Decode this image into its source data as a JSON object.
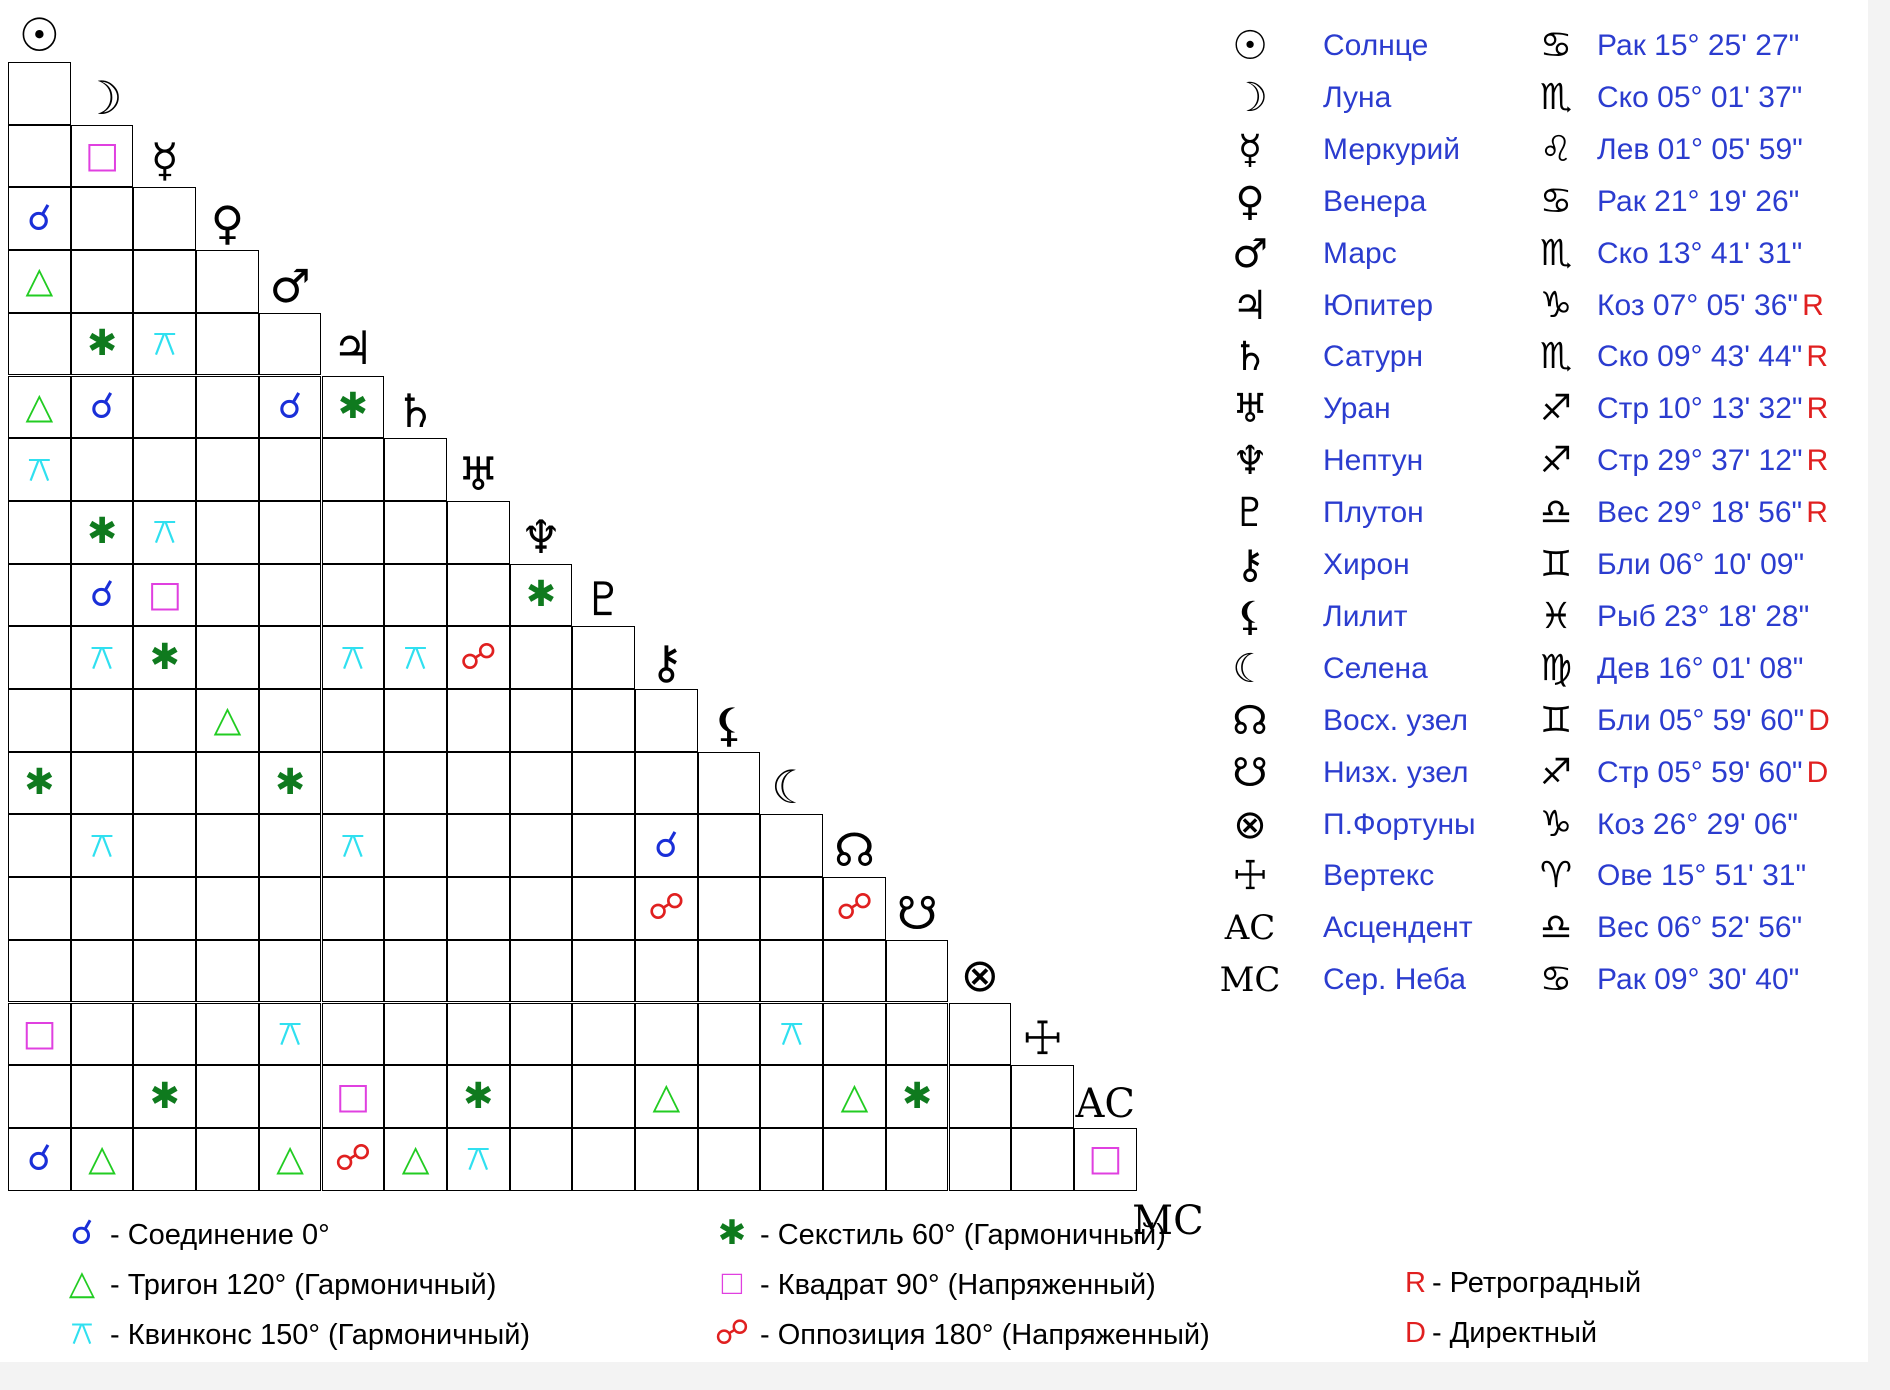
{
  "colors": {
    "conjunction": "#1a2fd8",
    "sextile": "#0f7a1e",
    "trine": "#22cc22",
    "square": "#e040e0",
    "quincunx": "#30e0f0",
    "opposition": "#e02020",
    "text_blue": "#2b3ccf",
    "flag_red": "#e02020"
  },
  "aspect_symbols": {
    "conj": "☌",
    "sext": "✱",
    "trine": "△",
    "square": "□",
    "quin": "⚻",
    "opp": "☍"
  },
  "planets": [
    {
      "glyph": "☉",
      "name": "Солнце",
      "sign": "♋",
      "pos": "Рак 15° 25' 27\"",
      "flag": ""
    },
    {
      "glyph": "☽",
      "name": "Луна",
      "sign": "♏",
      "pos": "Ско 05° 01' 37\"",
      "flag": ""
    },
    {
      "glyph": "☿",
      "name": "Меркурий",
      "sign": "♌",
      "pos": "Лев 01° 05' 59\"",
      "flag": ""
    },
    {
      "glyph": "♀",
      "name": "Венера",
      "sign": "♋",
      "pos": "Рак 21° 19' 26\"",
      "flag": ""
    },
    {
      "glyph": "♂",
      "name": "Марс",
      "sign": "♏",
      "pos": "Ско 13° 41' 31\"",
      "flag": ""
    },
    {
      "glyph": "♃",
      "name": "Юпитер",
      "sign": "♑",
      "pos": "Коз 07° 05' 36\"",
      "flag": "R"
    },
    {
      "glyph": "♄",
      "name": "Сатурн",
      "sign": "♏",
      "pos": "Ско 09° 43' 44\"",
      "flag": "R"
    },
    {
      "glyph": "♅",
      "name": "Уран",
      "sign": "♐",
      "pos": "Стр 10° 13' 32\"",
      "flag": "R"
    },
    {
      "glyph": "♆",
      "name": "Нептун",
      "sign": "♐",
      "pos": "Стр 29° 37' 12\"",
      "flag": "R"
    },
    {
      "glyph": "♇",
      "name": "Плутон",
      "sign": "♎",
      "pos": "Вес 29° 18' 56\"",
      "flag": "R"
    },
    {
      "glyph": "⚷",
      "name": "Хирон",
      "sign": "♊",
      "pos": "Бли 06° 10' 09\"",
      "flag": ""
    },
    {
      "glyph": "⚸",
      "name": "Лилит",
      "sign": "♓",
      "pos": "Рыб 23° 18' 28\"",
      "flag": ""
    },
    {
      "glyph": "☾",
      "name": "Селена",
      "sign": "♍",
      "pos": "Дев 16° 01' 08\"",
      "flag": ""
    },
    {
      "glyph": "☊",
      "name": "Восх. узел",
      "sign": "♊",
      "pos": "Бли 05° 59' 60\"",
      "flag": "D"
    },
    {
      "glyph": "☋",
      "name": "Низх. узел",
      "sign": "♐",
      "pos": "Стр 05° 59' 60\"",
      "flag": "D"
    },
    {
      "glyph": "⊗",
      "name": "П.Фортуны",
      "sign": "♑",
      "pos": "Коз 26° 29' 06\"",
      "flag": ""
    },
    {
      "glyph": "☩",
      "name": "Вертекс",
      "sign": "♈",
      "pos": "Ове 15° 51' 31\"",
      "flag": ""
    },
    {
      "glyph": "AC",
      "name": "Асцендент",
      "sign": "♎",
      "pos": "Вес 06° 52' 56\"",
      "flag": ""
    },
    {
      "glyph": "MC",
      "name": "Сер. Неба",
      "sign": "♋",
      "pos": "Рак 09° 30' 40\"",
      "flag": ""
    }
  ],
  "aspects": [
    {
      "row": 2,
      "col": 1,
      "type": "square"
    },
    {
      "row": 3,
      "col": 0,
      "type": "conj"
    },
    {
      "row": 4,
      "col": 0,
      "type": "trine"
    },
    {
      "row": 5,
      "col": 1,
      "type": "sext"
    },
    {
      "row": 5,
      "col": 2,
      "type": "quin"
    },
    {
      "row": 6,
      "col": 0,
      "type": "trine"
    },
    {
      "row": 6,
      "col": 1,
      "type": "conj"
    },
    {
      "row": 6,
      "col": 4,
      "type": "conj"
    },
    {
      "row": 6,
      "col": 5,
      "type": "sext"
    },
    {
      "row": 7,
      "col": 0,
      "type": "quin"
    },
    {
      "row": 8,
      "col": 1,
      "type": "sext"
    },
    {
      "row": 8,
      "col": 2,
      "type": "quin"
    },
    {
      "row": 9,
      "col": 1,
      "type": "conj"
    },
    {
      "row": 9,
      "col": 2,
      "type": "square"
    },
    {
      "row": 9,
      "col": 8,
      "type": "sext"
    },
    {
      "row": 10,
      "col": 1,
      "type": "quin"
    },
    {
      "row": 10,
      "col": 2,
      "type": "sext"
    },
    {
      "row": 10,
      "col": 5,
      "type": "quin"
    },
    {
      "row": 10,
      "col": 6,
      "type": "quin"
    },
    {
      "row": 10,
      "col": 7,
      "type": "opp"
    },
    {
      "row": 11,
      "col": 3,
      "type": "trine"
    },
    {
      "row": 12,
      "col": 0,
      "type": "sext"
    },
    {
      "row": 12,
      "col": 4,
      "type": "sext"
    },
    {
      "row": 13,
      "col": 1,
      "type": "quin"
    },
    {
      "row": 13,
      "col": 5,
      "type": "quin"
    },
    {
      "row": 13,
      "col": 10,
      "type": "conj"
    },
    {
      "row": 14,
      "col": 10,
      "type": "opp"
    },
    {
      "row": 14,
      "col": 13,
      "type": "opp"
    },
    {
      "row": 16,
      "col": 0,
      "type": "square"
    },
    {
      "row": 16,
      "col": 4,
      "type": "quin"
    },
    {
      "row": 16,
      "col": 12,
      "type": "quin"
    },
    {
      "row": 17,
      "col": 2,
      "type": "sext"
    },
    {
      "row": 17,
      "col": 5,
      "type": "square"
    },
    {
      "row": 17,
      "col": 7,
      "type": "sext"
    },
    {
      "row": 17,
      "col": 10,
      "type": "trine"
    },
    {
      "row": 17,
      "col": 13,
      "type": "trine"
    },
    {
      "row": 17,
      "col": 14,
      "type": "sext"
    },
    {
      "row": 18,
      "col": 0,
      "type": "conj"
    },
    {
      "row": 18,
      "col": 1,
      "type": "trine"
    },
    {
      "row": 18,
      "col": 4,
      "type": "trine"
    },
    {
      "row": 18,
      "col": 5,
      "type": "opp"
    },
    {
      "row": 18,
      "col": 6,
      "type": "trine"
    },
    {
      "row": 18,
      "col": 7,
      "type": "quin"
    },
    {
      "row": 18,
      "col": 17,
      "type": "square"
    }
  ],
  "legend": {
    "conj": "- Соединение 0°",
    "trine": "- Тригон 120° (Гармоничный)",
    "quin": "- Квинконс 150° (Гармоничный)",
    "sext": "- Секстиль 60° (Гармоничный)",
    "square": "- Квадрат 90° (Напряженный)",
    "opp": "- Оппозиция 180° (Напряженный)",
    "R_letter": "R",
    "R_text": "- Ретроградный",
    "D_letter": "D",
    "D_text": "- Директный"
  }
}
